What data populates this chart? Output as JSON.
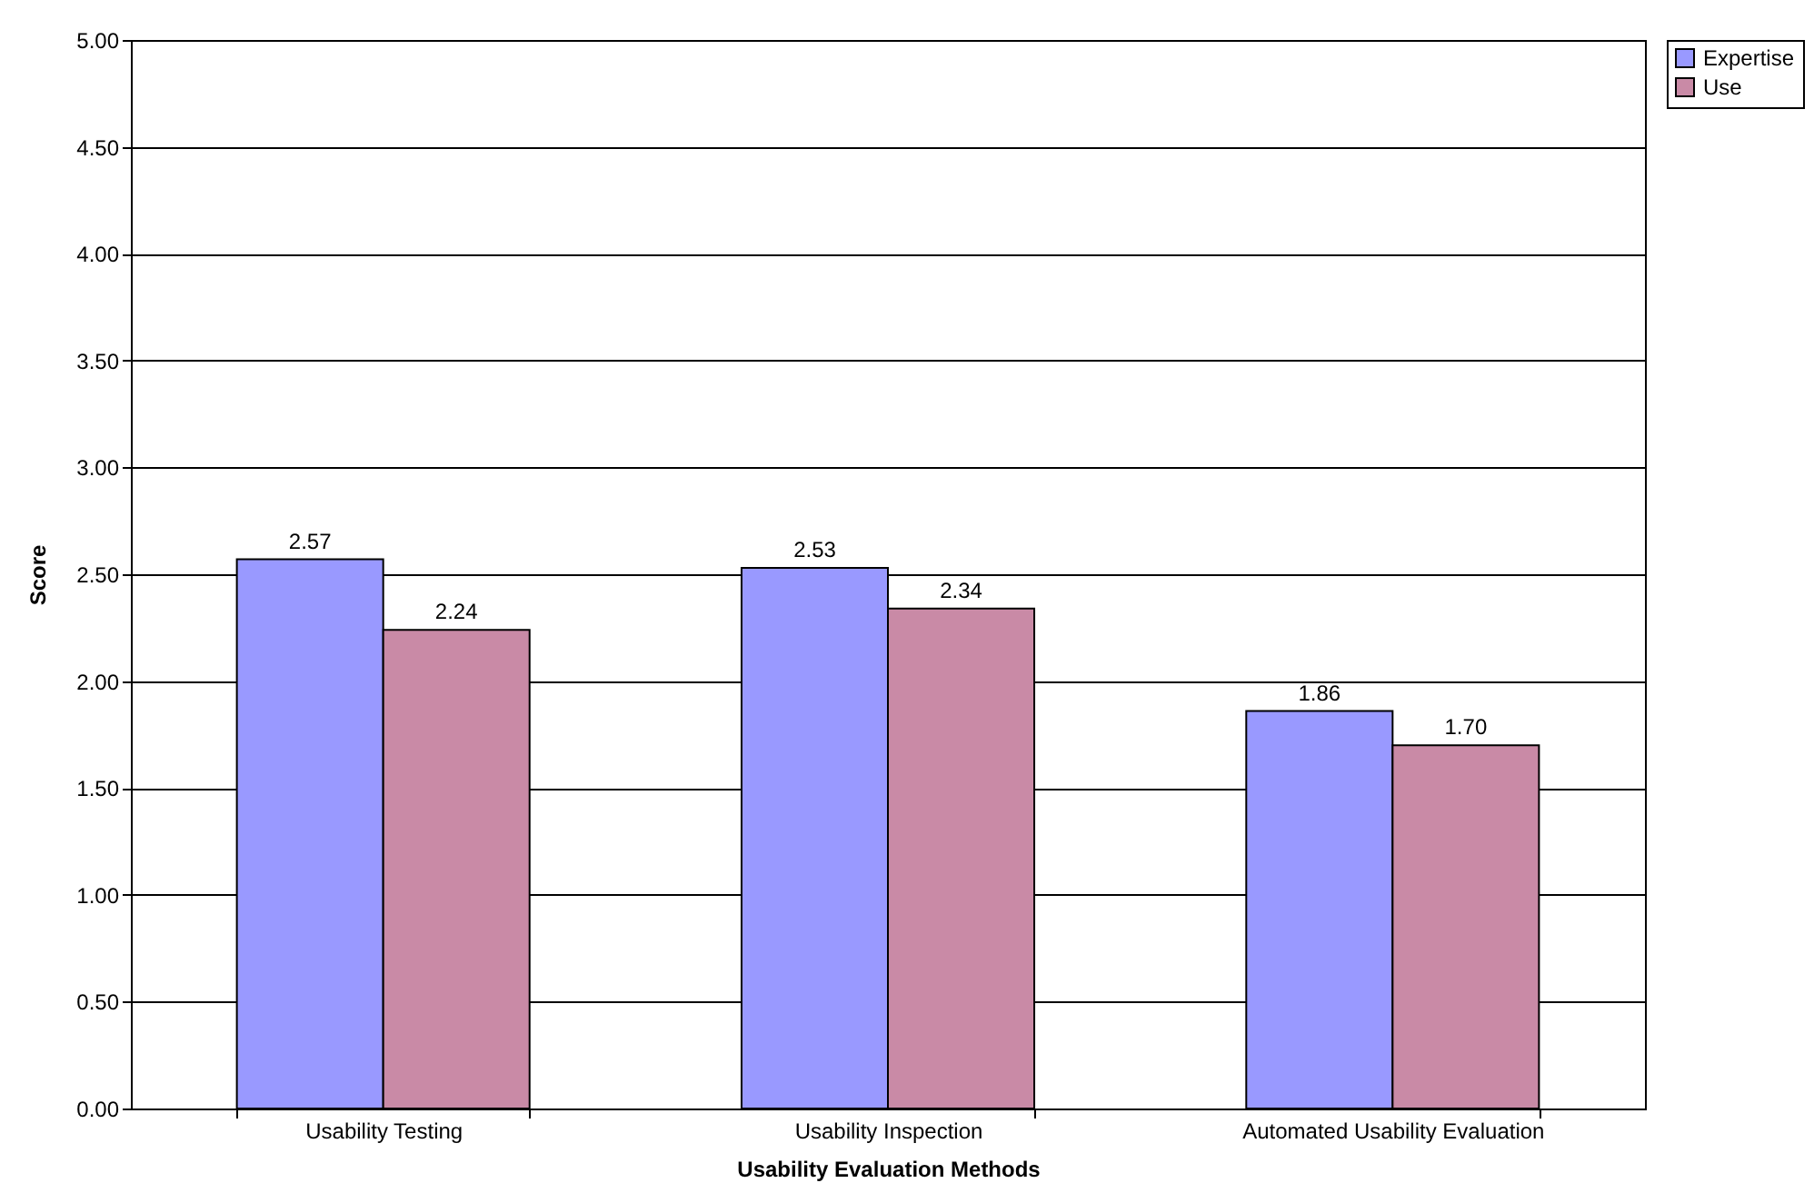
{
  "chart_data": {
    "type": "bar",
    "xlabel": "Usability Evaluation Methods",
    "ylabel": "Score",
    "categories": [
      "Usability Testing",
      "Usability Inspection",
      "Automated Usability Evaluation"
    ],
    "series": [
      {
        "name": "Expertise",
        "color": "#9999ff",
        "values": [
          2.57,
          2.53,
          1.86
        ],
        "value_labels": [
          "2.57",
          "2.53",
          "1.86"
        ]
      },
      {
        "name": "Use",
        "color": "#c98aa6",
        "values": [
          2.24,
          2.34,
          1.7
        ],
        "value_labels": [
          "2.24",
          "2.34",
          "1.70"
        ]
      }
    ],
    "ylim": [
      0,
      5
    ],
    "yticks": [
      {
        "value": 0,
        "label": "0.00"
      },
      {
        "value": 0.5,
        "label": "0.50"
      },
      {
        "value": 1,
        "label": "1.00"
      },
      {
        "value": 1.5,
        "label": "1.50"
      },
      {
        "value": 2,
        "label": "2.00"
      },
      {
        "value": 2.5,
        "label": "2.50"
      },
      {
        "value": 3,
        "label": "3.00"
      },
      {
        "value": 3.5,
        "label": "3.50"
      },
      {
        "value": 4,
        "label": "4.00"
      },
      {
        "value": 4.5,
        "label": "4.50"
      },
      {
        "value": 5,
        "label": "5.00"
      }
    ],
    "grid": "y",
    "legend": "right"
  }
}
